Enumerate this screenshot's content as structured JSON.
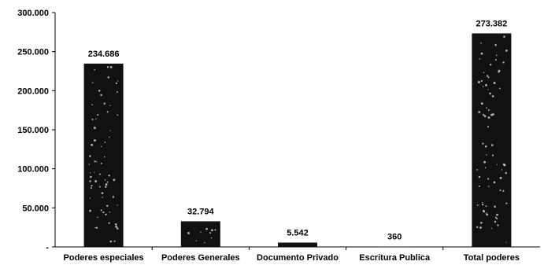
{
  "chart_data": {
    "type": "bar",
    "title": "",
    "xlabel": "",
    "ylabel": "",
    "categories": [
      "Poderes especiales",
      "Poderes Generales",
      "Documento Privado",
      "Escritura Publica",
      "Total poderes"
    ],
    "values": [
      234686,
      32794,
      5542,
      360,
      273382
    ],
    "value_labels": [
      "234.686",
      "32.794",
      "5.542",
      "360",
      "273.382"
    ],
    "ylim": [
      0,
      300000
    ],
    "yticks": [
      0,
      50000,
      100000,
      150000,
      200000,
      250000,
      300000
    ],
    "ytick_labels": [
      "-",
      "50.000",
      "100.000",
      "150.000",
      "200.000",
      "250.000",
      "300.000"
    ],
    "bar_color": "#111111",
    "grid": false,
    "legend": "none"
  }
}
